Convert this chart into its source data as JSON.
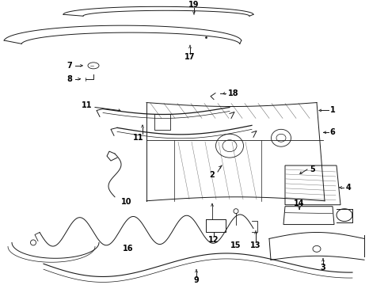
{
  "bg_color": "#ffffff",
  "line_color": "#1a1a1a",
  "label_color": "#000000",
  "figsize": [
    4.9,
    3.6
  ],
  "dpi": 100
}
